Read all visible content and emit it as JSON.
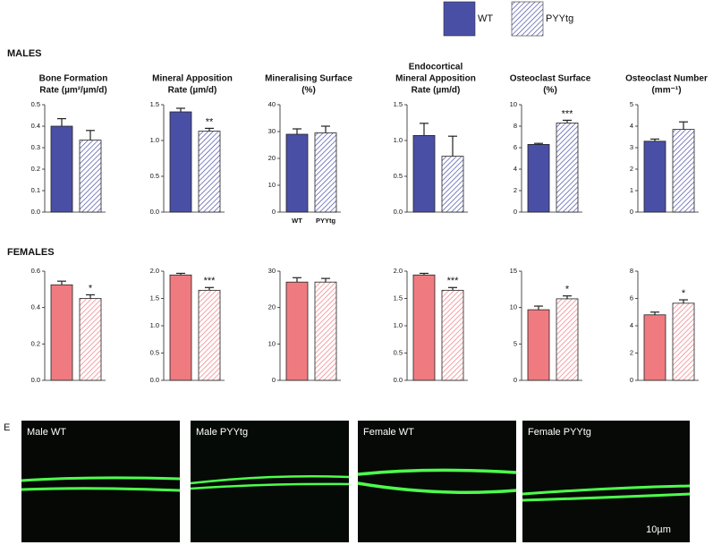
{
  "legend": {
    "entries": [
      "WT",
      "PYYtg"
    ],
    "color": "#4a4fa6"
  },
  "males_label": "MALES",
  "females_label": "FEMALES",
  "chart_data": [
    {
      "type": "bar",
      "title": [
        "Bone Formation",
        "Rate (µm²/µm/d)"
      ],
      "categories": [
        null,
        null
      ],
      "values": [
        0.4,
        0.335
      ],
      "errors": [
        0.035,
        0.045
      ],
      "color": "#4a4fa6",
      "ylim": [
        0,
        0.5
      ],
      "yticks": [
        {
          "value": 0,
          "label": "0.0"
        },
        0.1,
        0.2,
        0.3,
        0.4,
        0.5
      ]
    },
    {
      "type": "bar",
      "title": [
        "Mineral Apposition",
        "Rate (µm/d)"
      ],
      "categories": [
        null,
        null
      ],
      "values": [
        1.4,
        1.13
      ],
      "errors": [
        0.05,
        0.04
      ],
      "color": "#4a4fa6",
      "ylim": [
        0,
        1.5
      ],
      "yticks": [
        {
          "value": 0,
          "label": "0.0"
        },
        0.5,
        {
          "value": 1,
          "label": "1.0"
        },
        1.5
      ],
      "annotation": "**"
    },
    {
      "type": "bar",
      "title": [
        "Mineralising Surface",
        "(%)"
      ],
      "categories": [
        "WT",
        "PYYtg"
      ],
      "values": [
        29,
        29.5
      ],
      "errors": [
        2,
        2.5
      ],
      "color": "#4a4fa6",
      "ylim": [
        0,
        40
      ],
      "yticks": [
        0,
        10,
        20,
        30,
        40
      ]
    },
    {
      "type": "bar",
      "title": [
        "Endocortical",
        "Mineral Apposition",
        "Rate (µm/d)"
      ],
      "categories": [
        null,
        null
      ],
      "values": [
        1.07,
        0.78
      ],
      "errors": [
        0.17,
        0.28
      ],
      "color": "#4a4fa6",
      "ylim": [
        0,
        1.5
      ],
      "yticks": [
        {
          "value": 0,
          "label": "0.0"
        },
        0.5,
        {
          "value": 1,
          "label": "1.0"
        },
        1.5
      ]
    },
    {
      "type": "bar",
      "title": [
        "Osteoclast Surface",
        "(%)"
      ],
      "categories": [
        null,
        null
      ],
      "values": [
        6.3,
        8.3
      ],
      "errors": [
        0.1,
        0.25
      ],
      "color": "#4a4fa6",
      "ylim": [
        0,
        10
      ],
      "yticks": [
        0,
        2,
        4,
        6,
        8,
        10
      ],
      "annotation": "***"
    },
    {
      "type": "bar",
      "title": [
        "Osteoclast Number",
        "(mm⁻¹)"
      ],
      "categories": [
        null,
        null
      ],
      "values": [
        3.3,
        3.85
      ],
      "errors": [
        0.1,
        0.35
      ],
      "color": "#4a4fa6",
      "ylim": [
        0,
        5
      ],
      "yticks": [
        0,
        1,
        2,
        3,
        4,
        5
      ]
    },
    {
      "type": "bar",
      "categories": [
        null,
        null
      ],
      "values": [
        0.525,
        0.45
      ],
      "errors": [
        0.02,
        0.02
      ],
      "color": "#ef7b80",
      "ylim": [
        0,
        0.6
      ],
      "yticks": [
        {
          "value": 0,
          "label": "0.0"
        },
        0.2,
        0.4,
        0.6
      ],
      "annotation": "*"
    },
    {
      "type": "bar",
      "categories": [
        null,
        null
      ],
      "values": [
        1.93,
        1.65
      ],
      "errors": [
        0.03,
        0.05
      ],
      "color": "#ef7b80",
      "ylim": [
        0,
        2
      ],
      "yticks": [
        {
          "value": 0,
          "label": "0.0"
        },
        0.5,
        {
          "value": 1,
          "label": "1.0"
        },
        1.5,
        {
          "value": 2,
          "label": "2.0"
        }
      ],
      "annotation": "***"
    },
    {
      "type": "bar",
      "categories": [
        null,
        null
      ],
      "values": [
        27,
        27
      ],
      "errors": [
        1.2,
        1
      ],
      "color": "#ef7b80",
      "ylim": [
        0,
        30
      ],
      "yticks": [
        0,
        10,
        20,
        30
      ]
    },
    {
      "type": "bar",
      "categories": [
        null,
        null
      ],
      "values": [
        1.93,
        1.65
      ],
      "errors": [
        0.03,
        0.05
      ],
      "color": "#ef7b80",
      "ylim": [
        0,
        2
      ],
      "yticks": [
        {
          "value": 0,
          "label": "0.0"
        },
        0.5,
        {
          "value": 1,
          "label": "1.0"
        },
        1.5,
        {
          "value": 2,
          "label": "2.0"
        }
      ],
      "annotation": "***"
    },
    {
      "type": "bar",
      "categories": [
        null,
        null
      ],
      "values": [
        9.7,
        11.2
      ],
      "errors": [
        0.5,
        0.4
      ],
      "color": "#ef7b80",
      "ylim": [
        0,
        15
      ],
      "yticks": [
        0,
        5,
        10,
        15
      ],
      "annotation": "*"
    },
    {
      "type": "bar",
      "categories": [
        null,
        null
      ],
      "values": [
        4.8,
        5.65
      ],
      "errors": [
        0.2,
        0.25
      ],
      "color": "#ef7b80",
      "ylim": [
        0,
        8
      ],
      "yticks": [
        0,
        2,
        4,
        6,
        8
      ],
      "annotation": "*"
    }
  ],
  "panel_e": {
    "label": "E",
    "panels": [
      "Male WT",
      "Male PYYtg",
      "Female WT",
      "Female PYYtg"
    ],
    "scale_bar": "10µm"
  }
}
